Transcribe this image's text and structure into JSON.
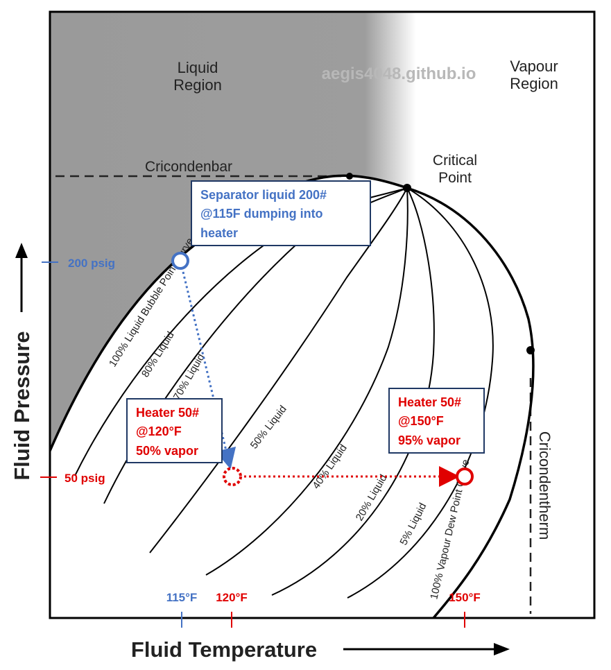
{
  "watermark": "aegis4048.github.io",
  "regions": {
    "liquid": [
      "Liquid",
      "Region"
    ],
    "vapour": [
      "Vapour",
      "Region"
    ]
  },
  "labels": {
    "cricondenbar": "Cricondenbar",
    "critical_point": [
      "Critical",
      "Point"
    ],
    "cricondentherm": "Cricondentherm"
  },
  "curves": {
    "bubble": "100% Liquid Bubble Point Curve",
    "l80": "80% Liquid",
    "l70": "70% Liquid",
    "l50": "50% Liquid",
    "l40": "40% Liquid",
    "l20": "20% Liquid",
    "l5": "5% Liquid",
    "dew": "100% Vapour Dew Point Curve"
  },
  "axes": {
    "x_label": "Fluid Temperature",
    "y_label": "Fluid Pressure"
  },
  "pressure_ticks": {
    "p200": "200 psig",
    "p50": "50 psig"
  },
  "temperature_ticks": {
    "t115": "115°F",
    "t120": "120°F",
    "t150": "150°F"
  },
  "callouts": {
    "separator": [
      "Separator liquid 200#",
      "@115F dumping into",
      "heater"
    ],
    "heater_120": [
      "Heater 50#",
      "@120°F",
      "50% vapor"
    ],
    "heater_150": [
      "Heater 50#",
      "@150°F",
      "95% vapor"
    ]
  },
  "colors": {
    "blue": "#4472C4",
    "red": "#E00000",
    "navy": "#1F3864",
    "shade": "#9A9A9A"
  }
}
